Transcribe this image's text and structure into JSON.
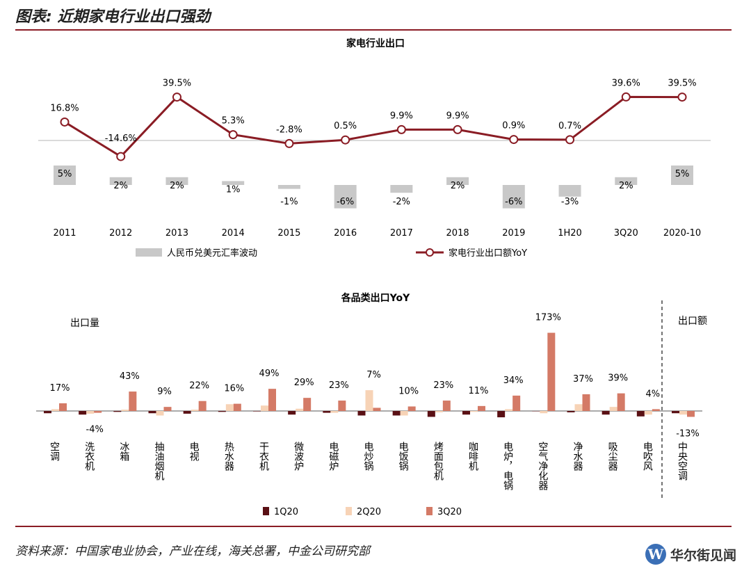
{
  "page": {
    "title": "图表: 近期家电行业出口强劲",
    "source": "资料来源：中国家电业协会，产业在线，海关总署，中金公司研究部",
    "watermark": "华尔街见闻",
    "watermark_logo": "W",
    "colors": {
      "rule": "#8a1c24",
      "line": "#8a1c24",
      "bar_gray": "#c8c8c8",
      "q1": "#5a1014",
      "q2": "#f7d3b6",
      "q3": "#d47a66"
    }
  },
  "chart_data": [
    {
      "type": "line",
      "title": "家电行业出口",
      "categories": [
        "2011",
        "2012",
        "2013",
        "2014",
        "2015",
        "2016",
        "2017",
        "2018",
        "2019",
        "1H20",
        "3Q20",
        "2020-10"
      ],
      "series": [
        {
          "name": "家电行业出口额YoY",
          "kind": "line",
          "values": [
            16.8,
            -14.6,
            39.5,
            5.3,
            -2.8,
            0.5,
            9.9,
            9.9,
            0.9,
            0.7,
            39.6,
            39.5
          ],
          "labels": [
            "16.8%",
            "-14.6%",
            "39.5%",
            "5.3%",
            "-2.8%",
            "0.5%",
            "9.9%",
            "9.9%",
            "0.9%",
            "0.7%",
            "39.6%",
            "39.5%"
          ]
        },
        {
          "name": "人民币兑美元汇率波动",
          "kind": "bar",
          "values": [
            5,
            2,
            2,
            1,
            -1,
            -6,
            -2,
            2,
            -6,
            -3,
            2,
            5
          ],
          "labels": [
            "5%",
            "2%",
            "2%",
            "1%",
            "-1%",
            "-6%",
            "-2%",
            "2%",
            "-6%",
            "-3%",
            "2%",
            "5%"
          ]
        }
      ],
      "legend": [
        "人民币兑美元汇率波动",
        "家电行业出口额YoY"
      ],
      "legend_position": "bottom"
    },
    {
      "type": "bar",
      "title": "各品类出口YoY",
      "group_labels": [
        "出口量",
        "出口额"
      ],
      "categories": [
        "空调",
        "洗衣机",
        "冰箱",
        "抽油烟机",
        "电视",
        "热水器",
        "干衣机",
        "微波炉",
        "电磁炉",
        "电炒锅",
        "电饭锅",
        "烤面包机",
        "咖啡机",
        "电炉，电锅",
        "空气净化器",
        "净水器",
        "吸尘器",
        "电吹风",
        "中央空调"
      ],
      "series": [
        {
          "name": "1Q20",
          "values": [
            -5,
            -8,
            -2,
            -5,
            -6,
            -2,
            -1,
            -8,
            -4,
            -10,
            -10,
            -13,
            -8,
            -14,
            0,
            -3,
            -8,
            -12,
            -5
          ]
        },
        {
          "name": "2Q20",
          "values": [
            4,
            -6,
            3,
            -10,
            3,
            15,
            12,
            5,
            -4,
            46,
            -10,
            -3,
            -2,
            4,
            -5,
            15,
            9,
            -8,
            -8
          ]
        },
        {
          "name": "3Q20",
          "values": [
            17,
            -4,
            43,
            9,
            22,
            16,
            49,
            29,
            23,
            7,
            10,
            23,
            11,
            34,
            173,
            37,
            39,
            4,
            -13
          ]
        }
      ],
      "labels_3q": [
        "17%",
        "-4%",
        "43%",
        "9%",
        "22%",
        "16%",
        "49%",
        "29%",
        "23%",
        "7%",
        "10%",
        "23%",
        "11%",
        "34%",
        "173%",
        "37%",
        "39%",
        "4%",
        "-13%"
      ],
      "legend": [
        "1Q20",
        "2Q20",
        "3Q20"
      ],
      "legend_position": "bottom"
    }
  ]
}
